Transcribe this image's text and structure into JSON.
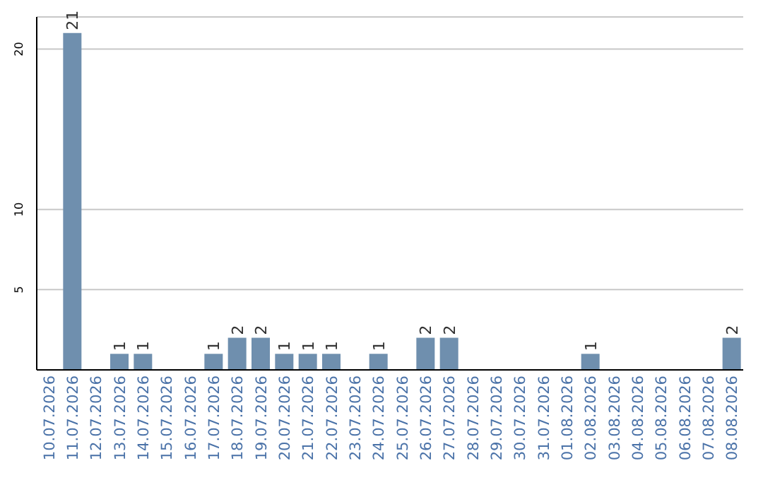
{
  "chart_data": {
    "type": "bar",
    "categories": [
      "10.07.2026",
      "11.07.2026",
      "12.07.2026",
      "13.07.2026",
      "14.07.2026",
      "15.07.2026",
      "16.07.2026",
      "17.07.2026",
      "18.07.2026",
      "19.07.2026",
      "20.07.2026",
      "21.07.2026",
      "22.07.2026",
      "23.07.2026",
      "24.07.2026",
      "25.07.2026",
      "26.07.2026",
      "27.07.2026",
      "28.07.2026",
      "29.07.2026",
      "30.07.2026",
      "31.07.2026",
      "01.08.2026",
      "02.08.2026",
      "03.08.2026",
      "04.08.2026",
      "05.08.2026",
      "06.08.2026",
      "07.08.2026",
      "08.08.2026"
    ],
    "values": [
      0,
      21,
      0,
      1,
      1,
      0,
      0,
      1,
      2,
      2,
      1,
      1,
      1,
      0,
      1,
      0,
      2,
      2,
      0,
      0,
      0,
      0,
      0,
      1,
      0,
      0,
      0,
      0,
      0,
      2
    ],
    "value_labels": [
      null,
      "21",
      null,
      "1",
      "1",
      null,
      null,
      "1",
      "2",
      "2",
      "1",
      "1",
      "1",
      null,
      "1",
      null,
      "2",
      "2",
      null,
      null,
      null,
      null,
      null,
      "1",
      null,
      null,
      null,
      null,
      null,
      "2"
    ],
    "color": "#6f8fae",
    "ylim": [
      0,
      22
    ],
    "yticks": [
      5,
      10,
      20
    ],
    "grid": "y",
    "legend": false
  }
}
